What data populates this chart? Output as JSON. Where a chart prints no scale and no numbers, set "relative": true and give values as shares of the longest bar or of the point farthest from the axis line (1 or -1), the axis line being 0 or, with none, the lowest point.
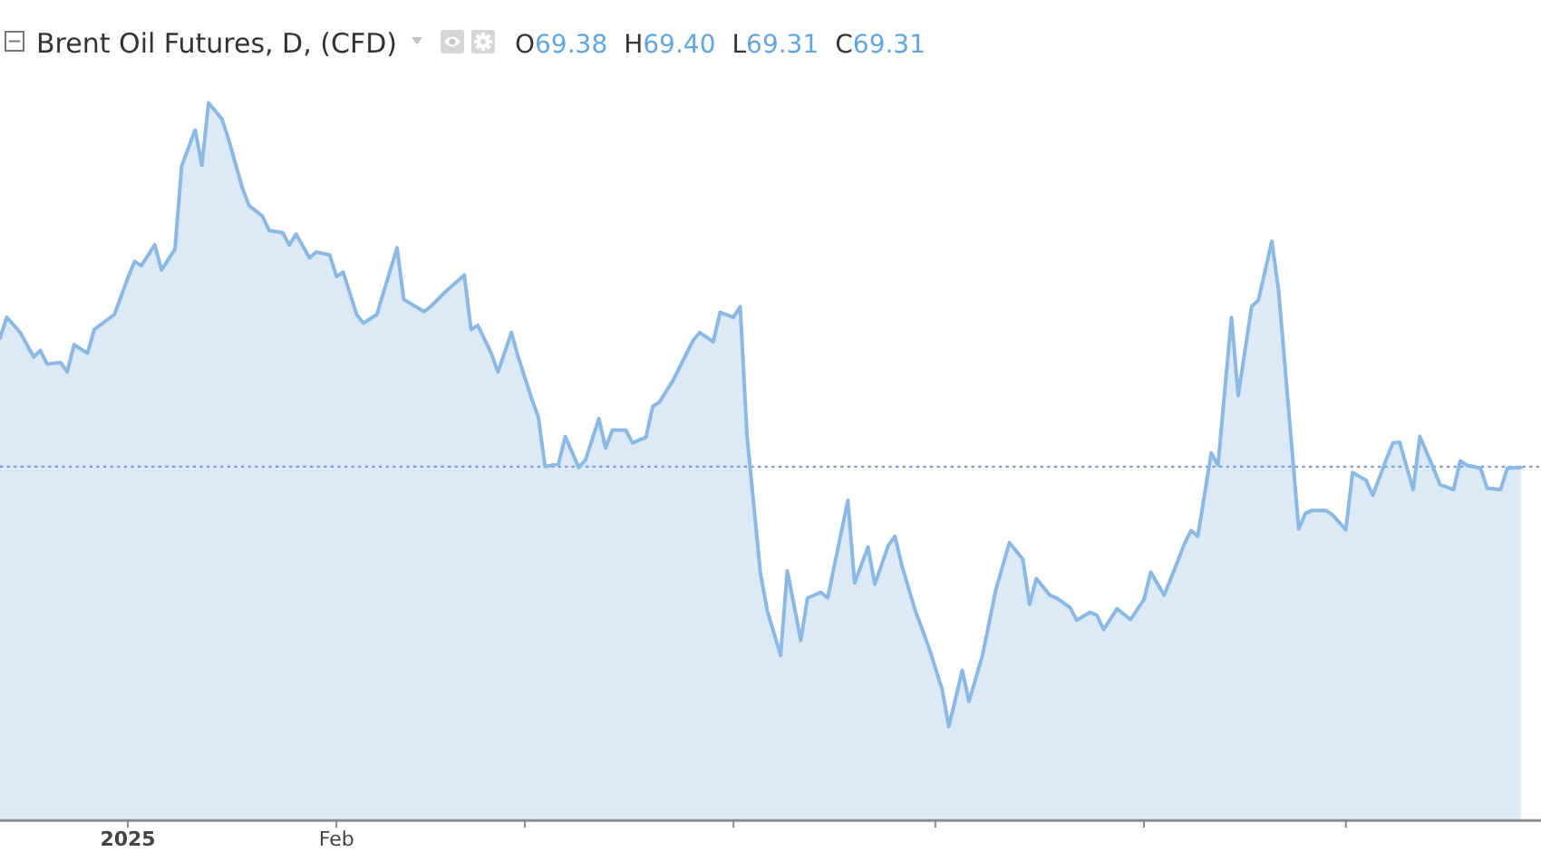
{
  "chart_data": {
    "type": "area",
    "title": "Brent Oil Futures, D, (CFD)",
    "annotations": [
      "O69.38",
      "H69.40",
      "L69.31",
      "C69.31"
    ],
    "relative": true,
    "x": [
      "2024-12-13",
      "2024-12-14",
      "2024-12-16",
      "2024-12-18",
      "2024-12-19",
      "2024-12-20",
      "2024-12-22",
      "2024-12-23",
      "2024-12-24",
      "2024-12-26",
      "2024-12-27",
      "2024-12-30",
      "2025-01-01",
      "2025-01-02",
      "2025-01-03",
      "2025-01-05",
      "2025-01-06",
      "2025-01-08",
      "2025-01-09",
      "2025-01-11",
      "2025-01-12",
      "2025-01-13",
      "2025-01-15",
      "2025-01-16",
      "2025-01-18",
      "2025-01-19",
      "2025-01-21",
      "2025-01-22",
      "2025-01-24",
      "2025-01-25",
      "2025-01-26",
      "2025-01-28",
      "2025-01-29",
      "2025-01-31",
      "2025-02-01",
      "2025-02-02",
      "2025-02-04",
      "2025-02-05",
      "2025-02-07",
      "2025-02-10",
      "2025-02-11",
      "2025-02-14",
      "2025-02-15",
      "2025-02-17",
      "2025-02-20",
      "2025-02-21",
      "2025-02-22",
      "2025-02-24",
      "2025-02-25",
      "2025-02-27",
      "2025-02-28",
      "2025-03-02",
      "2025-03-03",
      "2025-03-04",
      "2025-03-06",
      "2025-03-07",
      "2025-03-09",
      "2025-03-10",
      "2025-03-12",
      "2025-03-13",
      "2025-03-14",
      "2025-03-16",
      "2025-03-17",
      "2025-03-19",
      "2025-03-20",
      "2025-03-21",
      "2025-03-23",
      "2025-03-26",
      "2025-03-27",
      "2025-03-29",
      "2025-03-30",
      "2025-04-01",
      "2025-04-02",
      "2025-04-03",
      "2025-04-05",
      "2025-04-06",
      "2025-04-08",
      "2025-04-09",
      "2025-04-11",
      "2025-04-12",
      "2025-04-14",
      "2025-04-15",
      "2025-04-16",
      "2025-04-18",
      "2025-04-19",
      "2025-04-21",
      "2025-04-22",
      "2025-04-24",
      "2025-04-25",
      "2025-04-26",
      "2025-04-28",
      "2025-04-30",
      "2025-05-02",
      "2025-05-03",
      "2025-05-05",
      "2025-05-06",
      "2025-05-08",
      "2025-05-10",
      "2025-05-12",
      "2025-05-14",
      "2025-05-15",
      "2025-05-16",
      "2025-05-18",
      "2025-05-19",
      "2025-05-21",
      "2025-05-22",
      "2025-05-24",
      "2025-05-25",
      "2025-05-26",
      "2025-05-28",
      "2025-05-30",
      "2025-06-01",
      "2025-06-02",
      "2025-06-04",
      "2025-06-05",
      "2025-06-07",
      "2025-06-08",
      "2025-06-09",
      "2025-06-11",
      "2025-06-12",
      "2025-06-14",
      "2025-06-15",
      "2025-06-17",
      "2025-06-18",
      "2025-06-20",
      "2025-06-21",
      "2025-06-24",
      "2025-06-25",
      "2025-06-26",
      "2025-06-28",
      "2025-06-29",
      "2025-07-01",
      "2025-07-02",
      "2025-07-04",
      "2025-07-05",
      "2025-07-07",
      "2025-07-08",
      "2025-07-09",
      "2025-07-11",
      "2025-07-12",
      "2025-07-14",
      "2025-07-15",
      "2025-07-17",
      "2025-07-18",
      "2025-07-19",
      "2025-07-21",
      "2025-07-22",
      "2025-07-24",
      "2025-07-25",
      "2025-07-27"
    ],
    "series": [
      {
        "color": "#8cb9e3",
        "values": [
          0.672,
          0.701,
          0.68,
          0.646,
          0.655,
          0.636,
          0.638,
          0.625,
          0.663,
          0.651,
          0.684,
          0.705,
          0.756,
          0.779,
          0.773,
          0.802,
          0.767,
          0.796,
          0.912,
          0.962,
          0.913,
          1.0,
          0.977,
          0.948,
          0.882,
          0.857,
          0.842,
          0.822,
          0.819,
          0.802,
          0.817,
          0.784,
          0.792,
          0.788,
          0.758,
          0.764,
          0.705,
          0.693,
          0.705,
          0.798,
          0.726,
          0.709,
          0.716,
          0.735,
          0.76,
          0.684,
          0.69,
          0.651,
          0.625,
          0.68,
          0.646,
          0.588,
          0.562,
          0.493,
          0.497,
          0.535,
          0.492,
          0.502,
          0.56,
          0.519,
          0.544,
          0.544,
          0.526,
          0.534,
          0.577,
          0.583,
          0.613,
          0.669,
          0.68,
          0.667,
          0.708,
          0.701,
          0.716,
          0.537,
          0.345,
          0.293,
          0.23,
          0.348,
          0.251,
          0.31,
          0.318,
          0.31,
          0.356,
          0.446,
          0.331,
          0.381,
          0.329,
          0.383,
          0.396,
          0.356,
          0.293,
          0.242,
          0.183,
          0.131,
          0.209,
          0.166,
          0.23,
          0.322,
          0.387,
          0.364,
          0.301,
          0.337,
          0.314,
          0.31,
          0.297,
          0.279,
          0.29,
          0.286,
          0.266,
          0.295,
          0.28,
          0.308,
          0.346,
          0.314,
          0.337,
          0.385,
          0.404,
          0.396,
          0.512,
          0.495,
          0.701,
          0.592,
          0.716,
          0.725,
          0.807,
          0.739,
          0.406,
          0.428,
          0.432,
          0.432,
          0.426,
          0.405,
          0.485,
          0.474,
          0.453,
          0.503,
          0.526,
          0.527,
          0.461,
          0.535,
          0.491,
          0.468,
          0.461,
          0.501,
          0.495,
          0.491,
          0.463,
          0.461,
          0.491,
          0.492
        ]
      }
    ],
    "xlim": [
      "2024-12-13",
      "2025-07-30"
    ],
    "xticks": [
      {
        "value": "2025-01-01",
        "label": "2025"
      },
      {
        "value": "2025-02-01",
        "label": "Feb"
      },
      {
        "value": "2025-03-01",
        "label": null
      },
      {
        "value": "2025-04-01",
        "label": null
      },
      {
        "value": "2025-05-01",
        "label": null
      },
      {
        "value": "2025-06-01",
        "label": null
      },
      {
        "value": "2025-07-01",
        "label": null
      }
    ],
    "ref_lines": [
      {
        "axis": "y",
        "value": 0.493,
        "color": "#7d95dc",
        "line_style": "dotted"
      }
    ]
  }
}
